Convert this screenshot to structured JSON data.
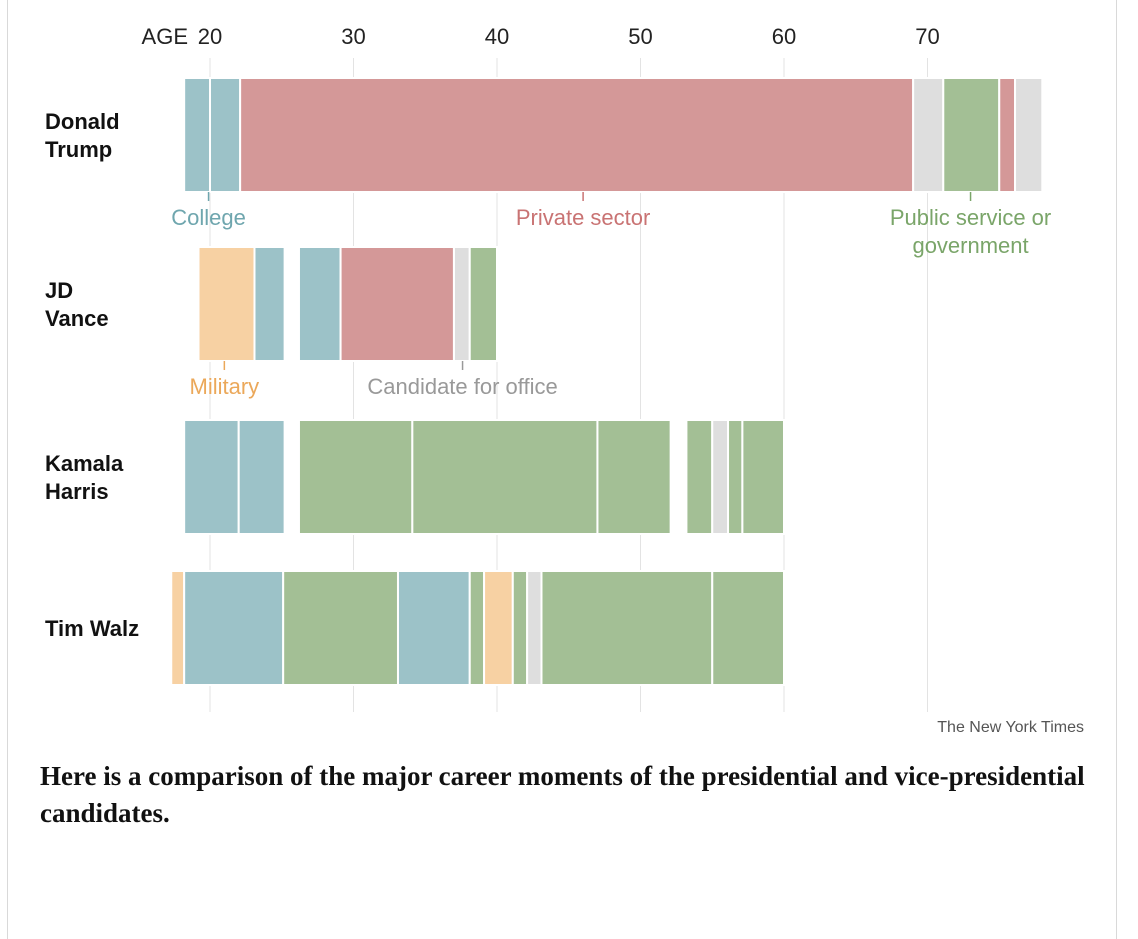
{
  "chart_data": {
    "type": "bar",
    "orientation": "horizontal-timeline",
    "axis_label": "AGE",
    "xticks": [
      20,
      30,
      40,
      50,
      60,
      70
    ],
    "xlim": [
      18,
      78
    ],
    "grid": true,
    "colors": {
      "college": "#9cc2c8",
      "private": "#d49898",
      "public": "#a3bf95",
      "military": "#f7d1a3",
      "candidate": "#dedede"
    },
    "legend_labels": {
      "college": "College",
      "private": "Private sector",
      "public": [
        "Public service or",
        "government"
      ],
      "military": "Military",
      "candidate": "Candidate for office"
    },
    "label_colors": {
      "college": "#6fa6ae",
      "private": "#c97373",
      "public": "#7aa569",
      "military": "#eba85a",
      "candidate": "#999999"
    },
    "rows": [
      {
        "name": [
          "Donald",
          "Trump"
        ],
        "segments": [
          {
            "start": 18.2,
            "end": 20.0,
            "category": "college"
          },
          {
            "start": 20.0,
            "end": 22.1,
            "category": "college"
          },
          {
            "start": 22.1,
            "end": 69.0,
            "category": "private"
          },
          {
            "start": 69.0,
            "end": 71.1,
            "category": "candidate"
          },
          {
            "start": 71.1,
            "end": 75.0,
            "category": "public"
          },
          {
            "start": 75.0,
            "end": 76.1,
            "category": "private"
          },
          {
            "start": 76.1,
            "end": 78.0,
            "category": "candidate"
          }
        ]
      },
      {
        "name": [
          "JD",
          "Vance"
        ],
        "segments": [
          {
            "start": 19.2,
            "end": 23.1,
            "category": "military"
          },
          {
            "start": 23.1,
            "end": 25.2,
            "category": "college"
          },
          {
            "start": 26.2,
            "end": 29.1,
            "category": "college"
          },
          {
            "start": 29.1,
            "end": 37.0,
            "category": "private"
          },
          {
            "start": 37.0,
            "end": 38.1,
            "category": "candidate"
          },
          {
            "start": 38.1,
            "end": 40.0,
            "category": "public"
          }
        ]
      },
      {
        "name": [
          "Kamala",
          "Harris"
        ],
        "segments": [
          {
            "start": 18.2,
            "end": 22.0,
            "category": "college"
          },
          {
            "start": 22.0,
            "end": 25.2,
            "category": "college"
          },
          {
            "start": 26.2,
            "end": 34.1,
            "category": "public"
          },
          {
            "start": 34.1,
            "end": 47.0,
            "category": "public"
          },
          {
            "start": 47.0,
            "end": 52.1,
            "category": "public"
          },
          {
            "start": 53.2,
            "end": 55.0,
            "category": "public"
          },
          {
            "start": 55.0,
            "end": 56.1,
            "category": "candidate"
          },
          {
            "start": 56.1,
            "end": 57.1,
            "category": "public"
          },
          {
            "start": 57.1,
            "end": 60.0,
            "category": "public"
          }
        ]
      },
      {
        "name": [
          "Tim Walz"
        ],
        "segments": [
          {
            "start": 17.3,
            "end": 18.2,
            "category": "military"
          },
          {
            "start": 18.2,
            "end": 25.1,
            "category": "college"
          },
          {
            "start": 25.1,
            "end": 33.1,
            "category": "public"
          },
          {
            "start": 33.1,
            "end": 38.1,
            "category": "college"
          },
          {
            "start": 38.1,
            "end": 39.1,
            "category": "public"
          },
          {
            "start": 39.1,
            "end": 41.1,
            "category": "military"
          },
          {
            "start": 41.1,
            "end": 42.1,
            "category": "public"
          },
          {
            "start": 42.1,
            "end": 43.1,
            "category": "candidate"
          },
          {
            "start": 43.1,
            "end": 55.0,
            "category": "public"
          },
          {
            "start": 55.0,
            "end": 60.0,
            "category": "public"
          }
        ]
      }
    ],
    "annotations": [
      {
        "category": "college",
        "row": 0,
        "age": 19.9
      },
      {
        "category": "private",
        "row": 0,
        "age": 46.0
      },
      {
        "category": "public",
        "row": 0,
        "age": 73.0
      },
      {
        "category": "military",
        "row": 1,
        "age": 21.0
      },
      {
        "category": "candidate",
        "row": 1,
        "age": 37.6
      }
    ]
  },
  "credit": "The New York Times",
  "caption": "Here is a comparison of the major career moments of the presidential and vice-presidential candidates."
}
